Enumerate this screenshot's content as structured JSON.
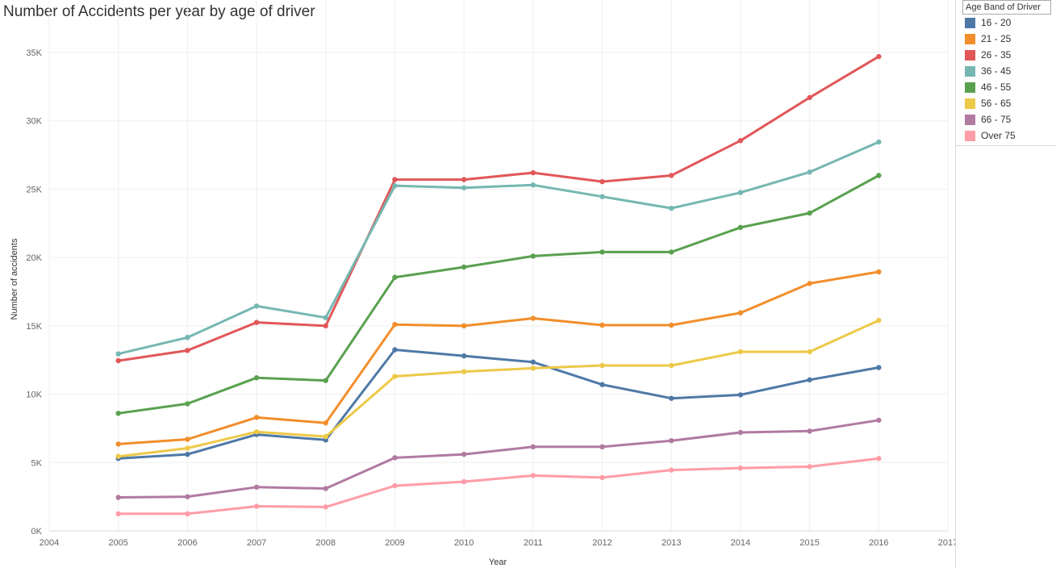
{
  "chart_data": {
    "type": "line",
    "title": "Number of Accidents per year by age of driver",
    "xlabel": "Year",
    "ylabel": "Number of accidents",
    "x": [
      2005,
      2006,
      2007,
      2008,
      2009,
      2010,
      2011,
      2012,
      2013,
      2014,
      2015,
      2016
    ],
    "xlim": [
      2004,
      2017
    ],
    "xticks": [
      "2004",
      "2005",
      "2006",
      "2007",
      "2008",
      "2009",
      "2010",
      "2011",
      "2012",
      "2013",
      "2014",
      "2015",
      "2016",
      "2017"
    ],
    "ylim": [
      0,
      35000
    ],
    "yticks": [
      {
        "value": 0,
        "label": "0K"
      },
      {
        "value": 5000,
        "label": "5K"
      },
      {
        "value": 10000,
        "label": "10K"
      },
      {
        "value": 15000,
        "label": "15K"
      },
      {
        "value": 20000,
        "label": "20K"
      },
      {
        "value": 25000,
        "label": "25K"
      },
      {
        "value": 30000,
        "label": "30K"
      },
      {
        "value": 35000,
        "label": "35K"
      }
    ],
    "grid": true,
    "legend_title": "Age Band of Driver",
    "legend_position": "right",
    "series": [
      {
        "name": "16 - 20",
        "color": "#4e79a7",
        "values": [
          5300,
          5600,
          7050,
          6650,
          13250,
          12800,
          12350,
          10700,
          9700,
          9950,
          11050,
          11950
        ]
      },
      {
        "name": "21 - 25",
        "color": "#f28e2b",
        "values": [
          6350,
          6700,
          8300,
          7900,
          15100,
          15000,
          15550,
          15050,
          15050,
          15950,
          18100,
          18950
        ]
      },
      {
        "name": "26 - 35",
        "color": "#e15759",
        "values": [
          12450,
          13200,
          15250,
          15000,
          25700,
          25700,
          26200,
          25550,
          26000,
          28550,
          31700,
          34700
        ]
      },
      {
        "name": "36 - 45",
        "color": "#76b7b2",
        "values": [
          12950,
          14150,
          16450,
          15600,
          25250,
          25100,
          25300,
          24450,
          23600,
          24750,
          26250,
          28450
        ]
      },
      {
        "name": "46 - 55",
        "color": "#59a14f",
        "values": [
          8600,
          9300,
          11200,
          11000,
          18550,
          19300,
          20100,
          20400,
          20400,
          22200,
          23250,
          26000
        ]
      },
      {
        "name": "56 - 65",
        "color": "#edc948",
        "values": [
          5450,
          6050,
          7250,
          6900,
          11300,
          11650,
          11900,
          12100,
          12100,
          13100,
          13100,
          15400
        ]
      },
      {
        "name": "66 - 75",
        "color": "#b07aa1",
        "values": [
          2450,
          2500,
          3200,
          3100,
          5350,
          5600,
          6150,
          6150,
          6600,
          7200,
          7300,
          8100
        ]
      },
      {
        "name": "Over 75",
        "color": "#ff9da7",
        "values": [
          1250,
          1250,
          1800,
          1750,
          3300,
          3600,
          4050,
          3900,
          4450,
          4600,
          4700,
          5300
        ]
      }
    ]
  }
}
